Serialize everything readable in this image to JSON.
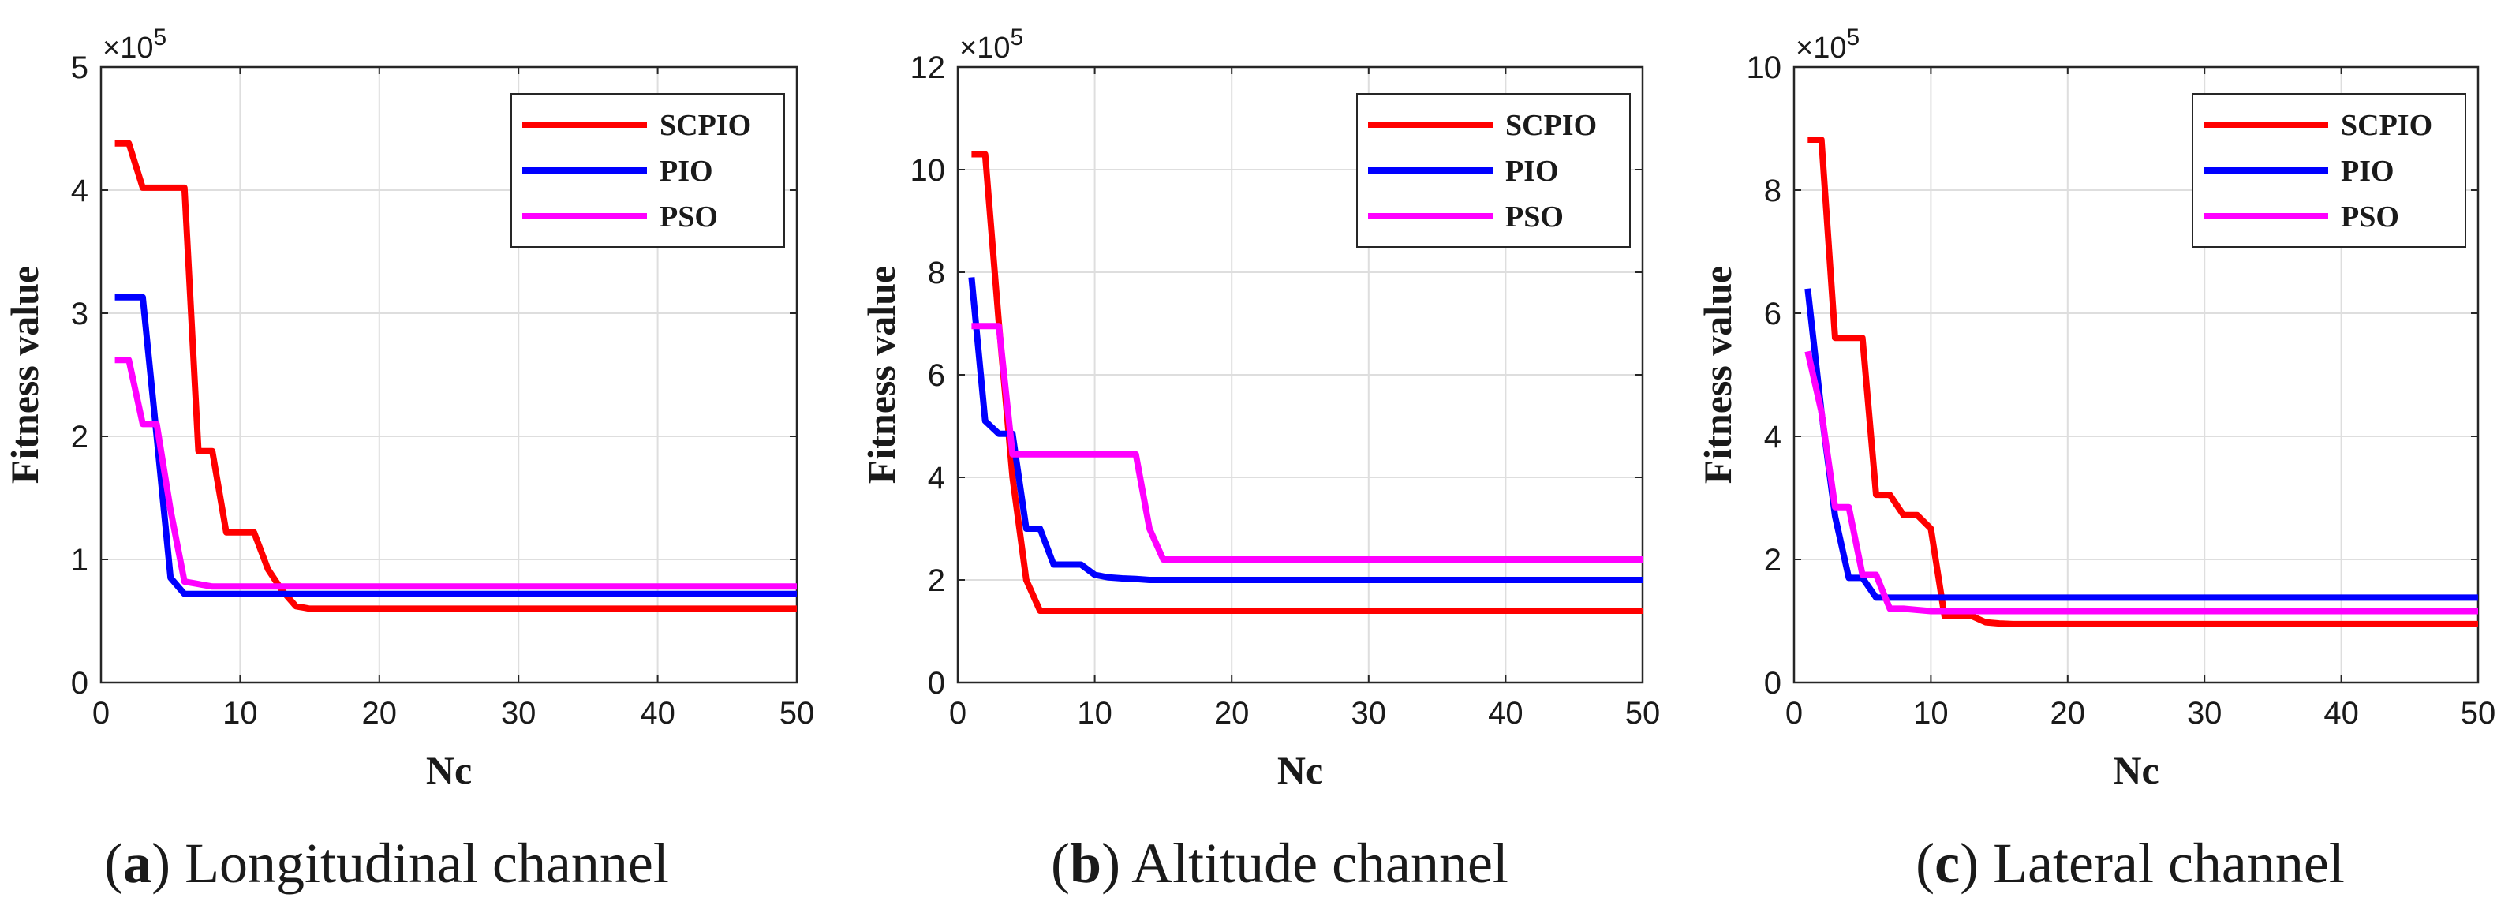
{
  "chart_data": [
    {
      "type": "line",
      "caption_letter": "a",
      "caption_text": "Longitudinal channel",
      "xlabel": "Nc",
      "ylabel": "Fitness value",
      "exponent_label": "×10",
      "exponent_power": "5",
      "xlim": [
        0,
        50
      ],
      "ylim": [
        0,
        5
      ],
      "xticks": [
        "0",
        "10",
        "20",
        "30",
        "40",
        "50"
      ],
      "yticks": [
        "0",
        "1",
        "2",
        "3",
        "4",
        "5"
      ],
      "grid": true,
      "legend_position": "top-right",
      "series": [
        {
          "name": "SCPIO",
          "color": "#ff0000",
          "x": [
            1,
            2,
            3,
            4,
            5,
            6,
            7,
            8,
            9,
            10,
            11,
            12,
            13,
            14,
            15,
            16,
            20,
            30,
            40,
            50
          ],
          "y": [
            4.38,
            4.38,
            4.02,
            4.02,
            4.02,
            4.02,
            1.88,
            1.88,
            1.22,
            1.22,
            1.22,
            0.92,
            0.75,
            0.62,
            0.6,
            0.6,
            0.6,
            0.6,
            0.6,
            0.6
          ]
        },
        {
          "name": "PIO",
          "color": "#0000ff",
          "x": [
            1,
            2,
            3,
            4,
            5,
            6,
            7,
            8,
            10,
            20,
            30,
            40,
            50
          ],
          "y": [
            3.13,
            3.13,
            3.13,
            2.0,
            0.85,
            0.72,
            0.72,
            0.72,
            0.72,
            0.72,
            0.72,
            0.72,
            0.72
          ]
        },
        {
          "name": "PSO",
          "color": "#ff00ff",
          "x": [
            1,
            2,
            3,
            4,
            5,
            6,
            7,
            8,
            9,
            10,
            20,
            30,
            40,
            50
          ],
          "y": [
            2.62,
            2.62,
            2.1,
            2.1,
            1.4,
            0.82,
            0.8,
            0.78,
            0.78,
            0.78,
            0.78,
            0.78,
            0.78,
            0.78
          ]
        }
      ]
    },
    {
      "type": "line",
      "caption_letter": "b",
      "caption_text": "Altitude channel",
      "xlabel": "Nc",
      "ylabel": "Fitness value",
      "exponent_label": "×10",
      "exponent_power": "5",
      "xlim": [
        0,
        50
      ],
      "ylim": [
        0,
        12
      ],
      "xticks": [
        "0",
        "10",
        "20",
        "30",
        "40",
        "50"
      ],
      "yticks": [
        "0",
        "2",
        "4",
        "6",
        "8",
        "10",
        "12"
      ],
      "grid": true,
      "legend_position": "top-right",
      "series": [
        {
          "name": "SCPIO",
          "color": "#ff0000",
          "x": [
            1,
            2,
            3,
            4,
            5,
            6,
            7,
            10,
            20,
            30,
            40,
            50
          ],
          "y": [
            10.3,
            10.3,
            7.0,
            4.0,
            2.0,
            1.4,
            1.4,
            1.4,
            1.4,
            1.4,
            1.4,
            1.4
          ]
        },
        {
          "name": "PIO",
          "color": "#0000ff",
          "x": [
            1,
            2,
            3,
            4,
            5,
            6,
            7,
            8,
            9,
            10,
            11,
            12,
            13,
            14,
            15,
            20,
            30,
            40,
            50
          ],
          "y": [
            7.9,
            5.1,
            4.85,
            4.85,
            3.0,
            3.0,
            2.3,
            2.3,
            2.3,
            2.1,
            2.05,
            2.03,
            2.02,
            2.0,
            2.0,
            2.0,
            2.0,
            2.0,
            2.0
          ]
        },
        {
          "name": "PSO",
          "color": "#ff00ff",
          "x": [
            1,
            2,
            3,
            4,
            5,
            6,
            7,
            8,
            9,
            10,
            11,
            12,
            13,
            14,
            15,
            16,
            20,
            30,
            40,
            50
          ],
          "y": [
            6.95,
            6.95,
            6.95,
            4.45,
            4.45,
            4.45,
            4.45,
            4.45,
            4.45,
            4.45,
            4.45,
            4.45,
            4.45,
            3.0,
            2.4,
            2.4,
            2.4,
            2.4,
            2.4,
            2.4
          ]
        }
      ]
    },
    {
      "type": "line",
      "caption_letter": "c",
      "caption_text": "Lateral channel",
      "xlabel": "Nc",
      "ylabel": "Fitness value",
      "exponent_label": "×10",
      "exponent_power": "5",
      "xlim": [
        0,
        50
      ],
      "ylim": [
        0,
        10
      ],
      "xticks": [
        "0",
        "10",
        "20",
        "30",
        "40",
        "50"
      ],
      "yticks": [
        "0",
        "2",
        "4",
        "6",
        "8",
        "10"
      ],
      "grid": true,
      "legend_position": "top-right",
      "series": [
        {
          "name": "SCPIO",
          "color": "#ff0000",
          "x": [
            1,
            2,
            3,
            4,
            5,
            6,
            7,
            8,
            9,
            10,
            11,
            12,
            13,
            14,
            15,
            16,
            20,
            30,
            40,
            50
          ],
          "y": [
            8.82,
            8.82,
            5.6,
            5.6,
            5.6,
            3.05,
            3.05,
            2.72,
            2.72,
            2.5,
            1.08,
            1.08,
            1.08,
            0.98,
            0.96,
            0.95,
            0.95,
            0.95,
            0.95,
            0.95
          ]
        },
        {
          "name": "PIO",
          "color": "#0000ff",
          "x": [
            1,
            2,
            3,
            4,
            5,
            6,
            7,
            8,
            10,
            20,
            30,
            40,
            50
          ],
          "y": [
            6.4,
            4.4,
            2.7,
            1.7,
            1.7,
            1.38,
            1.38,
            1.38,
            1.38,
            1.38,
            1.38,
            1.38,
            1.38
          ]
        },
        {
          "name": "PSO",
          "color": "#ff00ff",
          "x": [
            1,
            2,
            3,
            4,
            5,
            6,
            7,
            8,
            9,
            10,
            20,
            30,
            40,
            50
          ],
          "y": [
            5.38,
            4.4,
            2.85,
            2.85,
            1.75,
            1.75,
            1.2,
            1.2,
            1.18,
            1.16,
            1.16,
            1.16,
            1.16,
            1.16
          ]
        }
      ]
    }
  ]
}
